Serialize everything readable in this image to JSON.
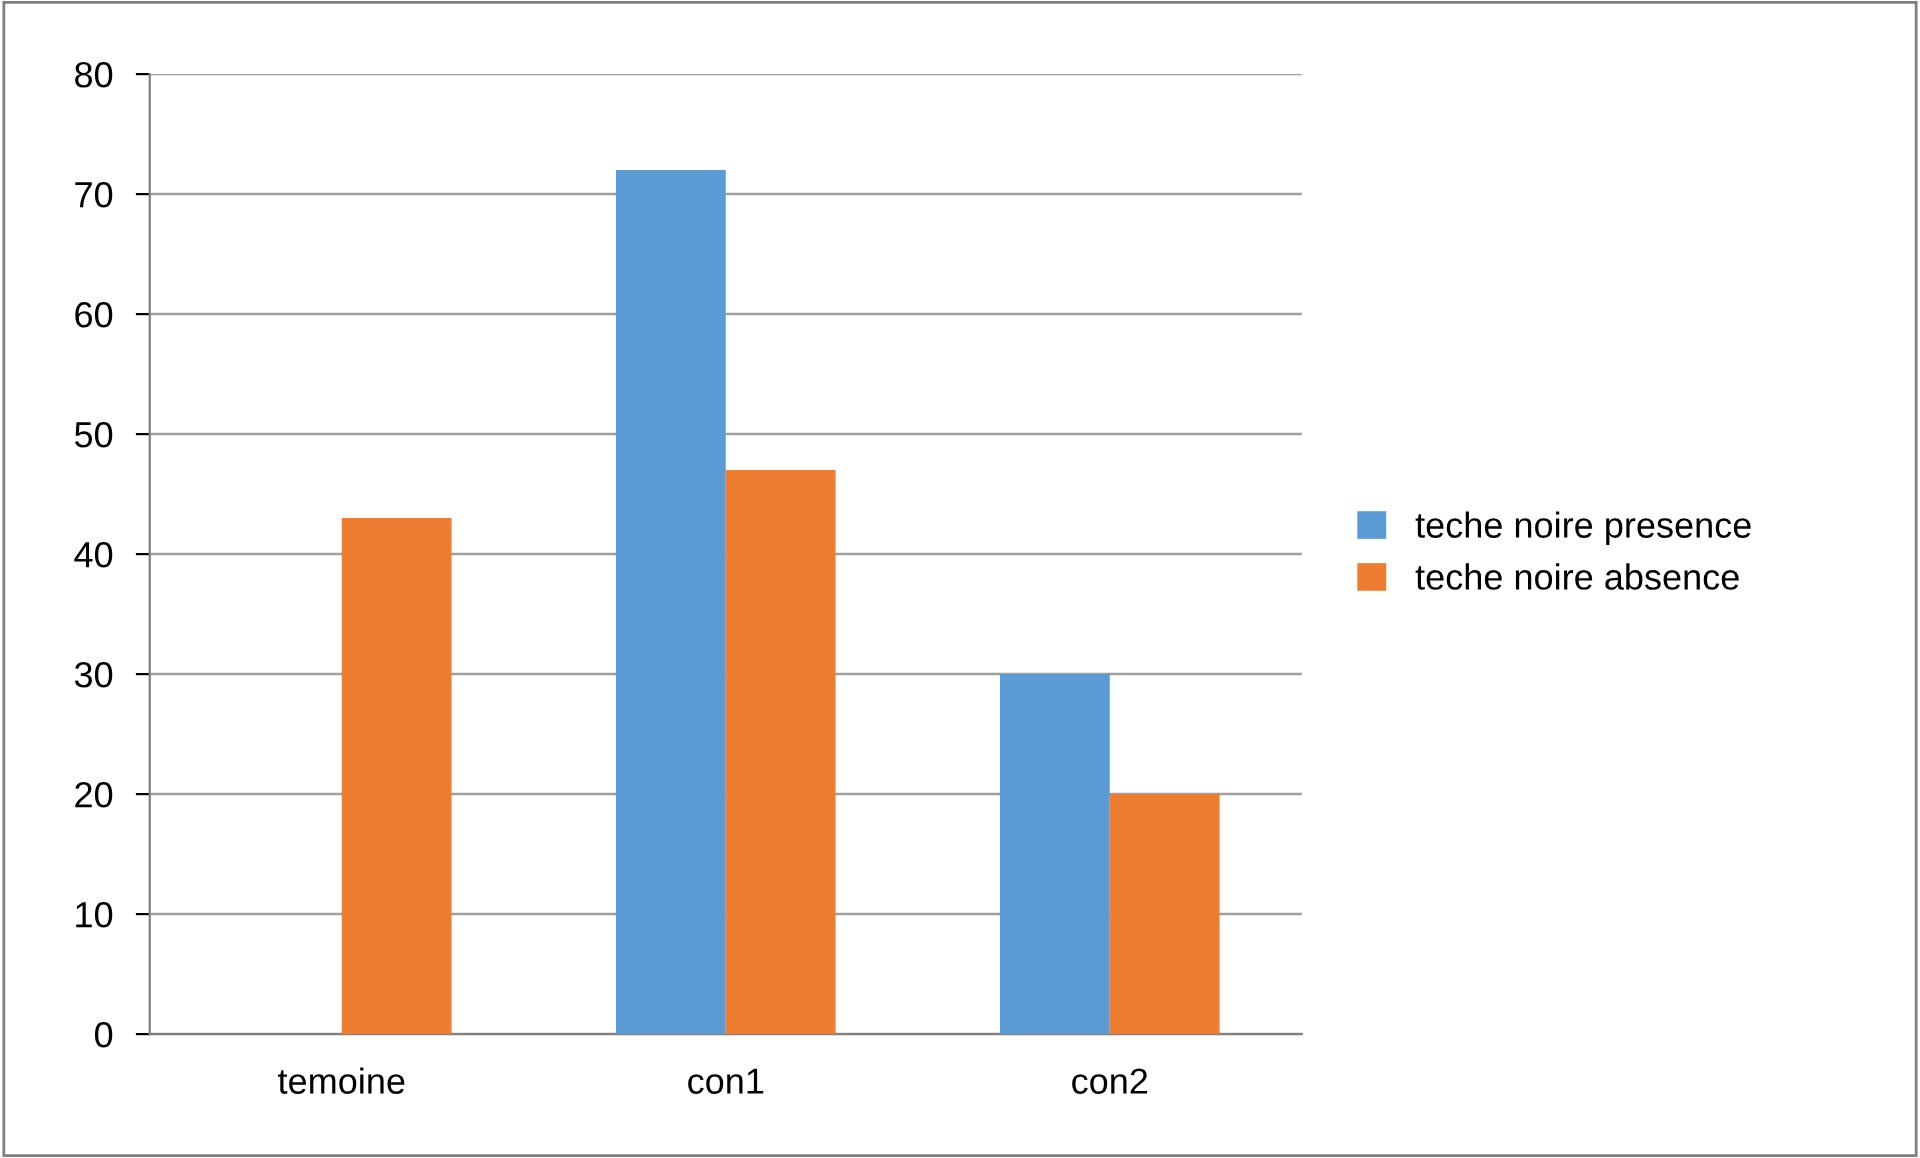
{
  "chart_data": {
    "type": "bar",
    "categories": [
      "temoine",
      "con1",
      "con2"
    ],
    "series": [
      {
        "name": "teche noire presence",
        "color": "#5b9bd5",
        "values": [
          0,
          72,
          30
        ]
      },
      {
        "name": "teche noire absence",
        "color": "#ed7d31",
        "values": [
          43,
          47,
          20
        ]
      }
    ],
    "ylim": [
      0,
      80
    ],
    "yticks": [
      0,
      10,
      20,
      30,
      40,
      50,
      60,
      70,
      80
    ],
    "grid": "y",
    "legend": "right"
  }
}
